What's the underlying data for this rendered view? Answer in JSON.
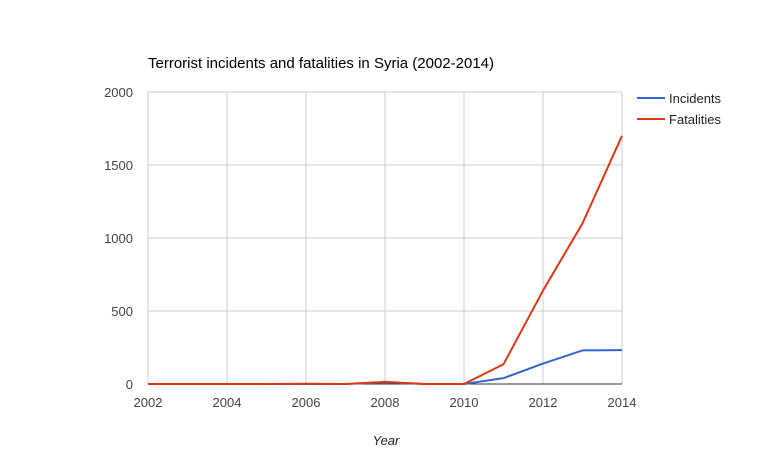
{
  "chart_data": {
    "type": "line",
    "title": "Terrorist incidents and fatalities in Syria (2002-2014)",
    "xlabel": "Year",
    "ylabel": "",
    "x": [
      2002,
      2003,
      2004,
      2005,
      2006,
      2007,
      2008,
      2009,
      2010,
      2011,
      2012,
      2013,
      2014
    ],
    "x_ticks": [
      2002,
      2004,
      2006,
      2008,
      2010,
      2012,
      2014
    ],
    "y_ticks": [
      0,
      500,
      1000,
      1500,
      2000
    ],
    "xlim": [
      2002,
      2014
    ],
    "ylim": [
      0,
      2000
    ],
    "grid": true,
    "legend_position": "right",
    "series": [
      {
        "name": "Incidents",
        "color": "#3366cc",
        "values": [
          0,
          0,
          0,
          0,
          0,
          0,
          12,
          0,
          0,
          40,
          140,
          230,
          232
        ]
      },
      {
        "name": "Fatalities",
        "color": "#dc3912",
        "values": [
          0,
          0,
          0,
          0,
          2,
          0,
          15,
          0,
          0,
          135,
          640,
          1100,
          1700
        ]
      }
    ]
  }
}
